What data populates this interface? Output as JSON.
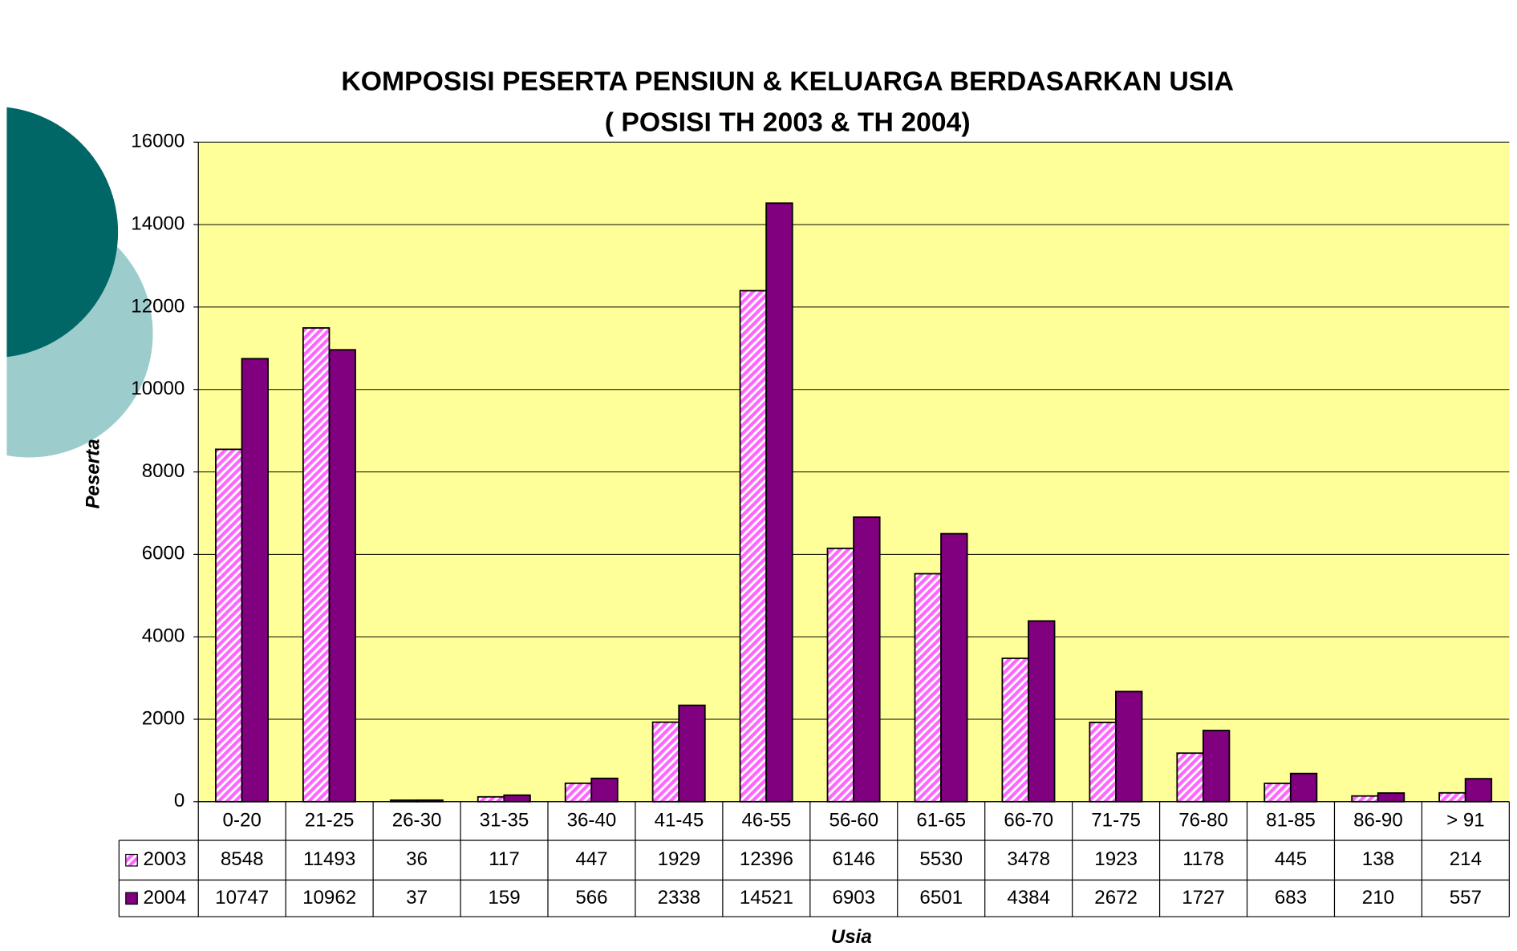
{
  "chart_data": {
    "type": "bar",
    "title": "KOMPOSISI PESERTA PENSIUN & KELUARGA BERDASARKAN USIA",
    "subtitle": "( POSISI TH 2003 & TH 2004)",
    "x_label": "Usia",
    "y_label": "Peserta",
    "categories": [
      "0-20",
      "21-25",
      "26-30",
      "31-35",
      "36-40",
      "41-45",
      "46-55",
      "56-60",
      "61-65",
      "66-70",
      "71-75",
      "76-80",
      "81-85",
      "86-90",
      "> 91"
    ],
    "series": [
      {
        "name": "2003",
        "color": "#ff66ff",
        "hatch": true,
        "values": [
          8548,
          11493,
          36,
          117,
          447,
          1929,
          12396,
          6146,
          5530,
          3478,
          1923,
          1178,
          445,
          138,
          214
        ]
      },
      {
        "name": "2004",
        "color": "#800080",
        "values": [
          10747,
          10962,
          37,
          159,
          566,
          2338,
          14521,
          6903,
          6501,
          4384,
          2672,
          1727,
          683,
          210,
          557
        ]
      }
    ],
    "ylim": [
      0,
      16000
    ],
    "yticks": [
      0,
      2000,
      4000,
      6000,
      8000,
      10000,
      12000,
      14000,
      16000
    ],
    "grid": true,
    "plot_background": "#ffff99"
  }
}
